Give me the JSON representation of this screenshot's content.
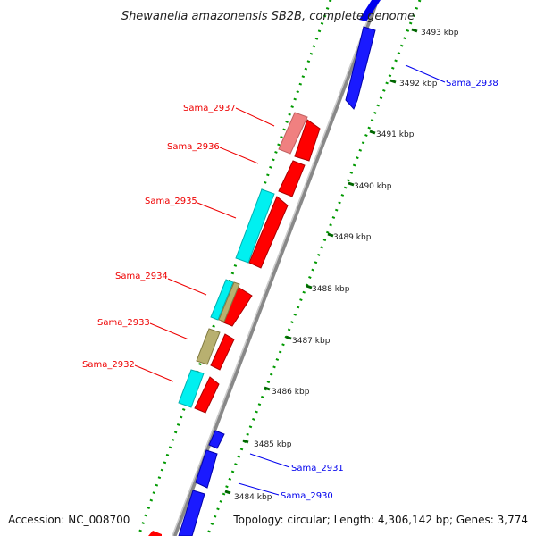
{
  "title": "Shewanella amazonensis SB2B, complete genome",
  "footer": {
    "accession": "Accession: NC_008700",
    "topology": "Topology: circular; Length: 4,306,142 bp; Genes: 3,774"
  },
  "ticks": [
    "3493 kbp",
    "3492 kbp",
    "3491 kbp",
    "3490 kbp",
    "3489 kbp",
    "3488 kbp",
    "3487 kbp",
    "3486 kbp",
    "3485 kbp",
    "3484 kbp"
  ],
  "genes_reverse": [
    "Sama_2937",
    "Sama_2936",
    "Sama_2935",
    "Sama_2934",
    "Sama_2933",
    "Sama_2932"
  ],
  "genes_forward": [
    "Sama_2938",
    "Sama_2931",
    "Sama_2930"
  ],
  "colors": {
    "forward_strand": "#0000ee",
    "reverse_strand": "#ee0000",
    "cog_cyan": "#00f0f0",
    "cog_olive": "#b8b070",
    "cog_pink": "#f08080",
    "backbone": "#888888",
    "ruler_dots": "#009900"
  }
}
